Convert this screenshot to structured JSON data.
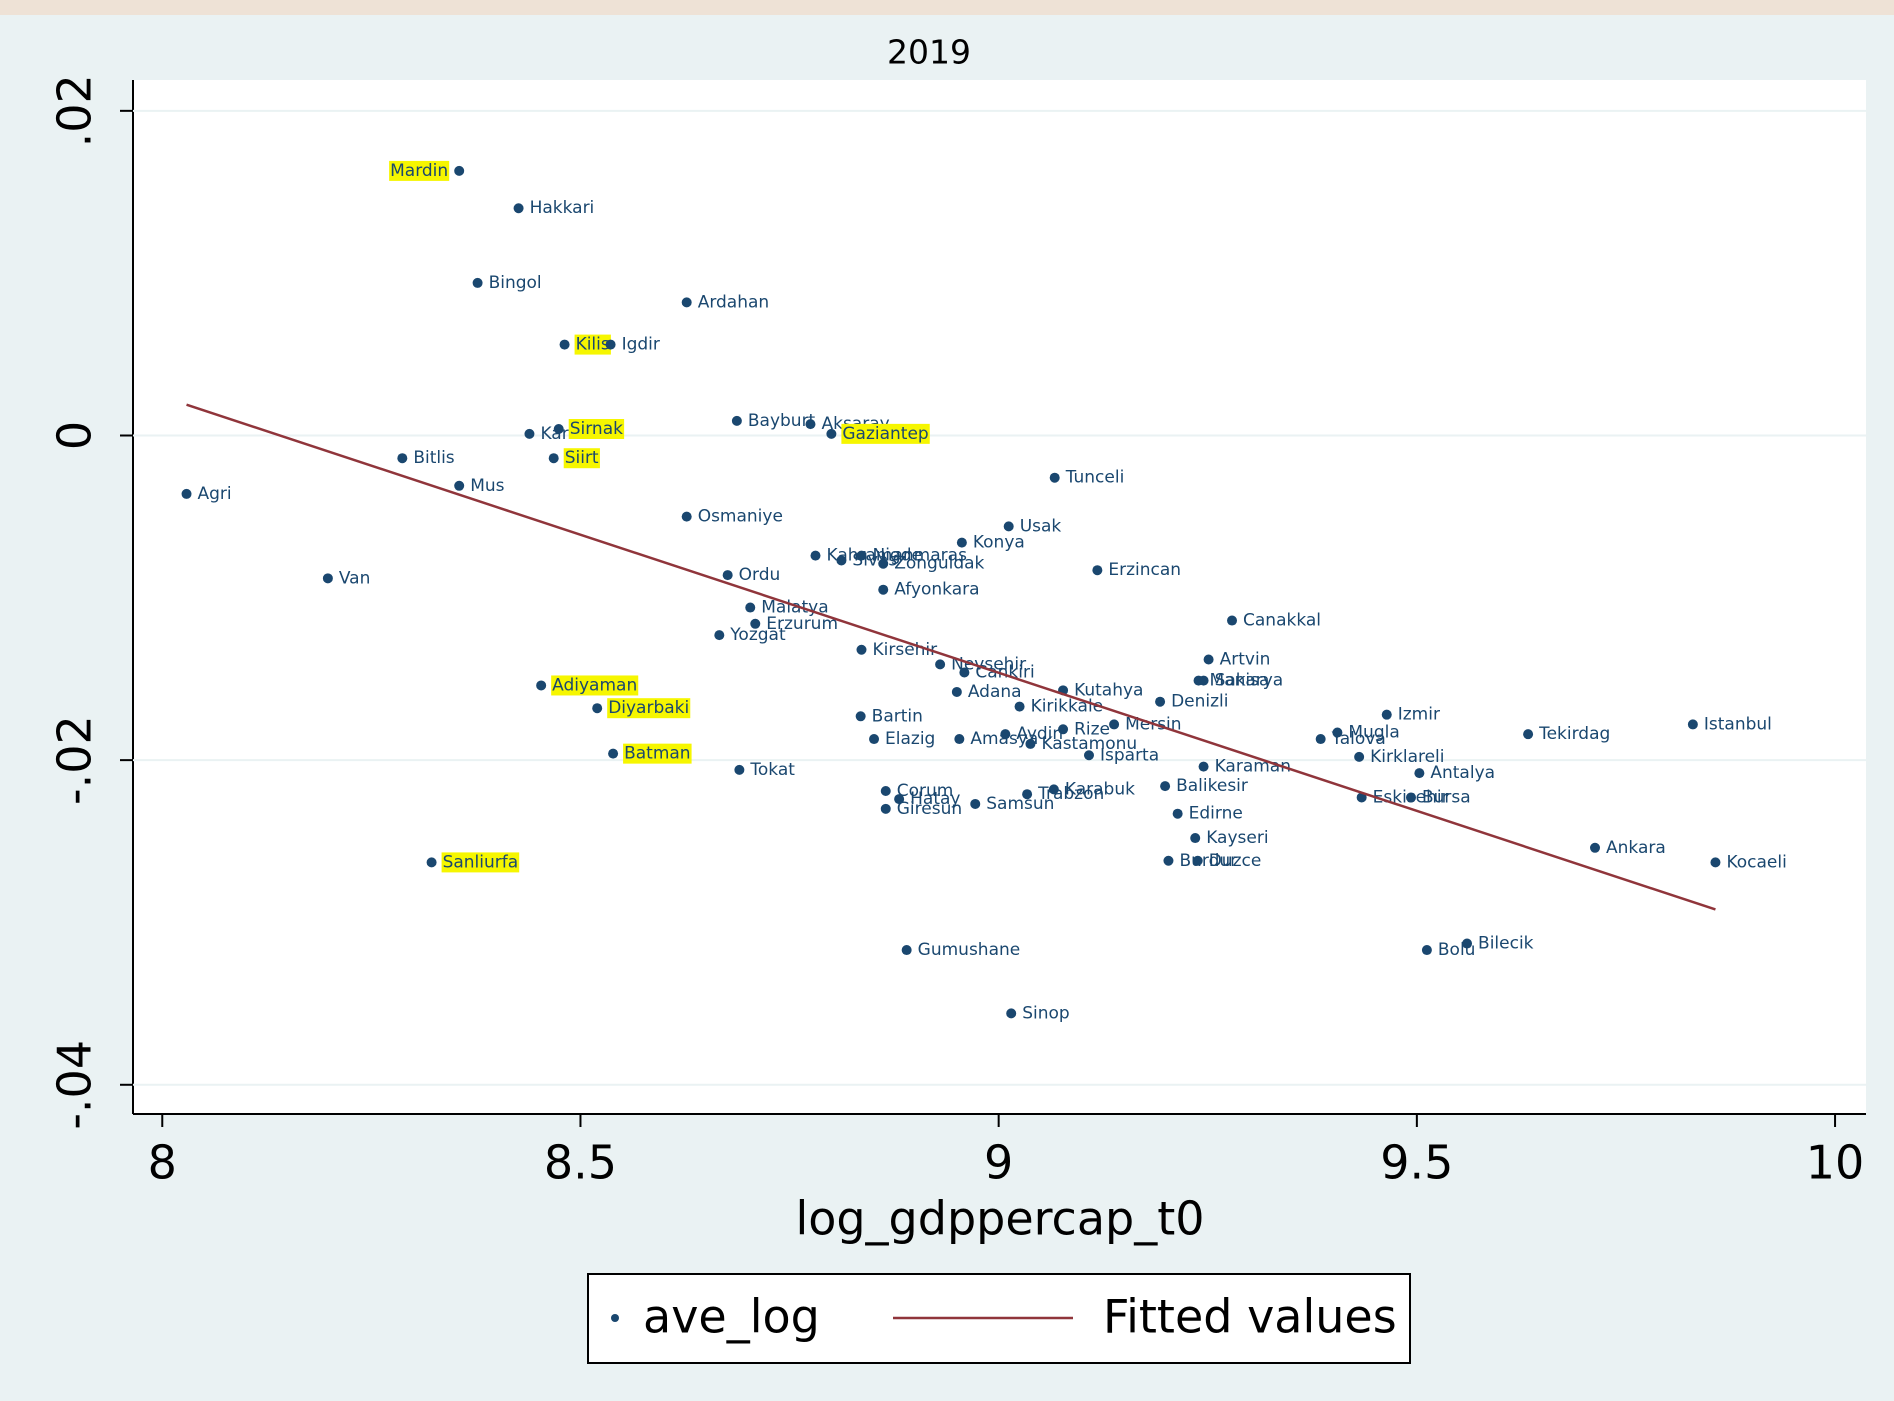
{
  "chart_data": {
    "type": "scatter",
    "title": "2019",
    "x_label": "log_gdppercap_t0",
    "xlim": [
      7.965,
      10.037
    ],
    "ylim": [
      -0.0418,
      0.0219
    ],
    "xticks": [
      8,
      8.5,
      9,
      9.5,
      10
    ],
    "yticks": [
      {
        "value": -0.04,
        "label": "-.04"
      },
      {
        "value": -0.02,
        "label": "-.02"
      },
      0,
      {
        "value": 0.02,
        "label": ".02"
      }
    ],
    "grid": true,
    "legend": "bottom",
    "highlight_color": "#f6f600",
    "series": [
      {
        "name": "ave_log",
        "type": "scatter",
        "color": "#1a476f",
        "labels": [
          "Mardin",
          "Hakkari",
          "Bingol",
          "Ardahan",
          "Kilis",
          "Igdir",
          "Bayburt",
          "Aksaray",
          "Gaziantep",
          "Kars",
          "Sirnak",
          "Bitlis",
          "Siirt",
          "Mus",
          "Agri",
          "Tunceli",
          "Osmaniye",
          "Usak",
          "Konya",
          "Van",
          "Ordu",
          "Kahramanmaras",
          "Sivas",
          "Nigde",
          "Zonguldak",
          "Erzincan",
          "Afyonkara",
          "Malatya",
          "Erzurum",
          "Yozgat",
          "Canakkal",
          "Kirsehir",
          "Nevsehir",
          "Cankiri",
          "Artvin",
          "Manisa",
          "Sakarya",
          "Adana",
          "Kutahya",
          "Kirikkale",
          "Denizli",
          "Bartin",
          "Izmir",
          "Istanbul",
          "Tekirdag",
          "Mugla",
          "Yalova",
          "Kirklareli",
          "Mersin",
          "Rize",
          "Elazig",
          "Amasya",
          "Aydin",
          "Kastamonu",
          "Isparta",
          "Karaman",
          "Antalya",
          "Tokat",
          "Batman",
          "Diyarbaki",
          "Adiyaman",
          "Balikesir",
          "Corum",
          "Hatay",
          "Giresun",
          "Samsun",
          "Trabzon",
          "Karabuk",
          "Eskisehir",
          "Bursa",
          "Edirne",
          "Kayseri",
          "Burdur",
          "Duzce",
          "Sanliurfa",
          "Ankara",
          "Kocaeli",
          "Bilecik",
          "Bolu",
          "Gumushane",
          "Sinop"
        ],
        "x": [
          8.355,
          8.426,
          8.377,
          8.627,
          8.481,
          8.536,
          8.687,
          8.775,
          8.8,
          8.439,
          8.474,
          8.287,
          8.468,
          8.355,
          8.029,
          9.067,
          8.627,
          9.012,
          8.956,
          8.198,
          8.676,
          8.781,
          8.812,
          8.836,
          8.862,
          9.118,
          8.862,
          8.703,
          8.709,
          8.666,
          9.279,
          8.836,
          8.93,
          8.959,
          9.251,
          9.239,
          9.245,
          8.95,
          9.077,
          9.025,
          9.193,
          8.835,
          9.464,
          9.83,
          9.633,
          9.405,
          9.385,
          9.431,
          9.138,
          9.077,
          8.851,
          8.953,
          9.008,
          9.038,
          9.108,
          9.245,
          9.503,
          8.69,
          8.539,
          8.52,
          8.453,
          9.199,
          8.865,
          8.881,
          8.865,
          8.972,
          9.034,
          9.066,
          9.434,
          9.493,
          9.214,
          9.235,
          9.203,
          9.238,
          8.322,
          9.713,
          9.857,
          9.56,
          9.512,
          8.89,
          9.015
        ],
        "values": [
          0.0163,
          0.014,
          0.0094,
          0.0082,
          0.0056,
          0.0056,
          0.0009,
          0.0007,
          0.0001,
          0.0001,
          0.0004,
          -0.0014,
          -0.0014,
          -0.0031,
          -0.0036,
          -0.0026,
          -0.005,
          -0.0056,
          -0.0066,
          -0.0088,
          -0.0086,
          -0.0074,
          -0.0077,
          -0.0074,
          -0.0079,
          -0.0083,
          -0.0095,
          -0.0106,
          -0.0116,
          -0.0123,
          -0.0114,
          -0.0132,
          -0.0141,
          -0.0146,
          -0.0138,
          -0.0151,
          -0.0151,
          -0.0158,
          -0.0157,
          -0.0167,
          -0.0164,
          -0.0173,
          -0.0172,
          -0.0178,
          -0.0184,
          -0.0183,
          -0.0187,
          -0.0198,
          -0.0178,
          -0.0181,
          -0.0187,
          -0.0187,
          -0.0184,
          -0.019,
          -0.0197,
          -0.0204,
          -0.0208,
          -0.0206,
          -0.0196,
          -0.0168,
          -0.0154,
          -0.0216,
          -0.0219,
          -0.0224,
          -0.023,
          -0.0227,
          -0.0221,
          -0.0218,
          -0.0223,
          -0.0223,
          -0.0233,
          -0.0248,
          -0.0262,
          -0.0262,
          -0.0263,
          -0.0254,
          -0.0263,
          -0.0313,
          -0.0317,
          -0.0317,
          -0.0356
        ],
        "highlighted": [
          true,
          false,
          false,
          false,
          true,
          false,
          false,
          false,
          true,
          false,
          true,
          false,
          true,
          false,
          false,
          false,
          false,
          false,
          false,
          false,
          false,
          false,
          false,
          false,
          false,
          false,
          false,
          false,
          false,
          false,
          false,
          false,
          false,
          false,
          false,
          false,
          false,
          false,
          false,
          false,
          false,
          false,
          false,
          false,
          false,
          false,
          false,
          false,
          false,
          false,
          false,
          false,
          false,
          false,
          false,
          false,
          false,
          false,
          true,
          true,
          true,
          false,
          false,
          false,
          false,
          false,
          false,
          false,
          false,
          false,
          false,
          false,
          false,
          false,
          true,
          false,
          false,
          false,
          false,
          false,
          false
        ],
        "label_positions": [
          "left",
          "right",
          "right",
          "right",
          "right",
          "right",
          "right",
          "right",
          "right",
          "right",
          "right",
          "right",
          "right",
          "right",
          "right",
          "right",
          "right",
          "right",
          "right",
          "right",
          "right",
          "right",
          "right",
          "right",
          "right",
          "right",
          "right",
          "right",
          "right",
          "right",
          "right",
          "right",
          "right",
          "right",
          "right",
          "right",
          "right",
          "right",
          "right",
          "right",
          "right",
          "right",
          "right",
          "right",
          "right",
          "right",
          "right",
          "right",
          "right",
          "right",
          "right",
          "right",
          "right",
          "right",
          "right",
          "right",
          "right",
          "right",
          "right",
          "right",
          "right",
          "right",
          "right",
          "right",
          "right",
          "right",
          "right",
          "right",
          "right",
          "right",
          "right",
          "right",
          "right",
          "right",
          "right",
          "right",
          "right",
          "right",
          "right",
          "right",
          "right"
        ]
      },
      {
        "name": "Fitted values",
        "type": "line",
        "color": "#90353b",
        "x": [
          8.029,
          9.857
        ],
        "values": [
          0.0019,
          -0.0292
        ]
      }
    ]
  }
}
